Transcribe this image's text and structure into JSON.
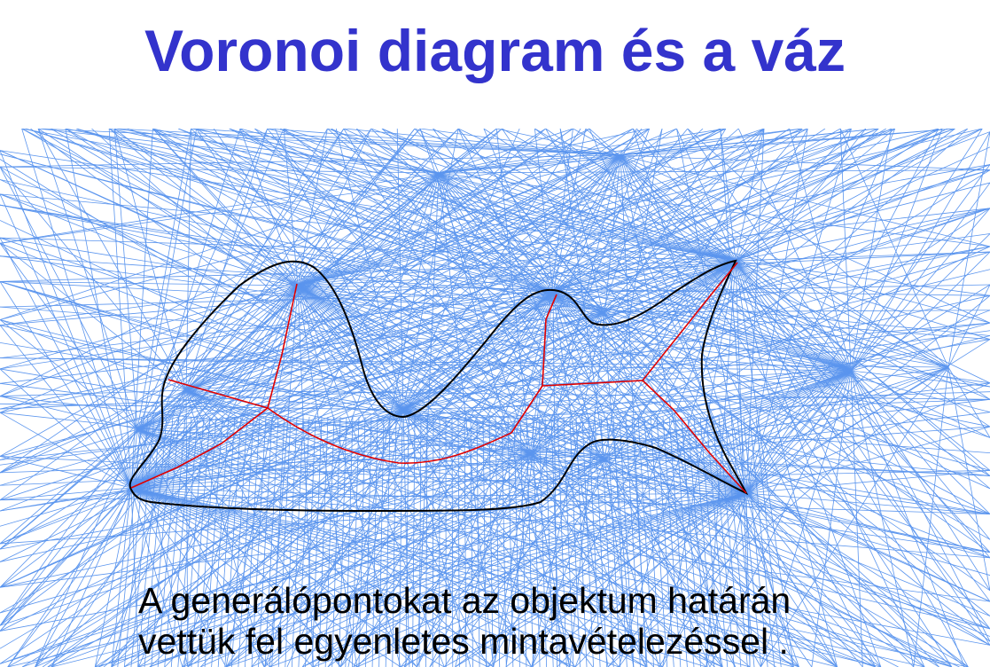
{
  "title": "Voronoi diagram és a váz",
  "caption": {
    "line1": "A generálópontokat az objektum határán",
    "line2": "vettük fel egyenletes mintavételezéssel ."
  },
  "colors": {
    "title": "#3333cc",
    "voronoi_edges": "#5b95ee",
    "object_boundary": "#000000",
    "skeleton": "#e00000"
  }
}
